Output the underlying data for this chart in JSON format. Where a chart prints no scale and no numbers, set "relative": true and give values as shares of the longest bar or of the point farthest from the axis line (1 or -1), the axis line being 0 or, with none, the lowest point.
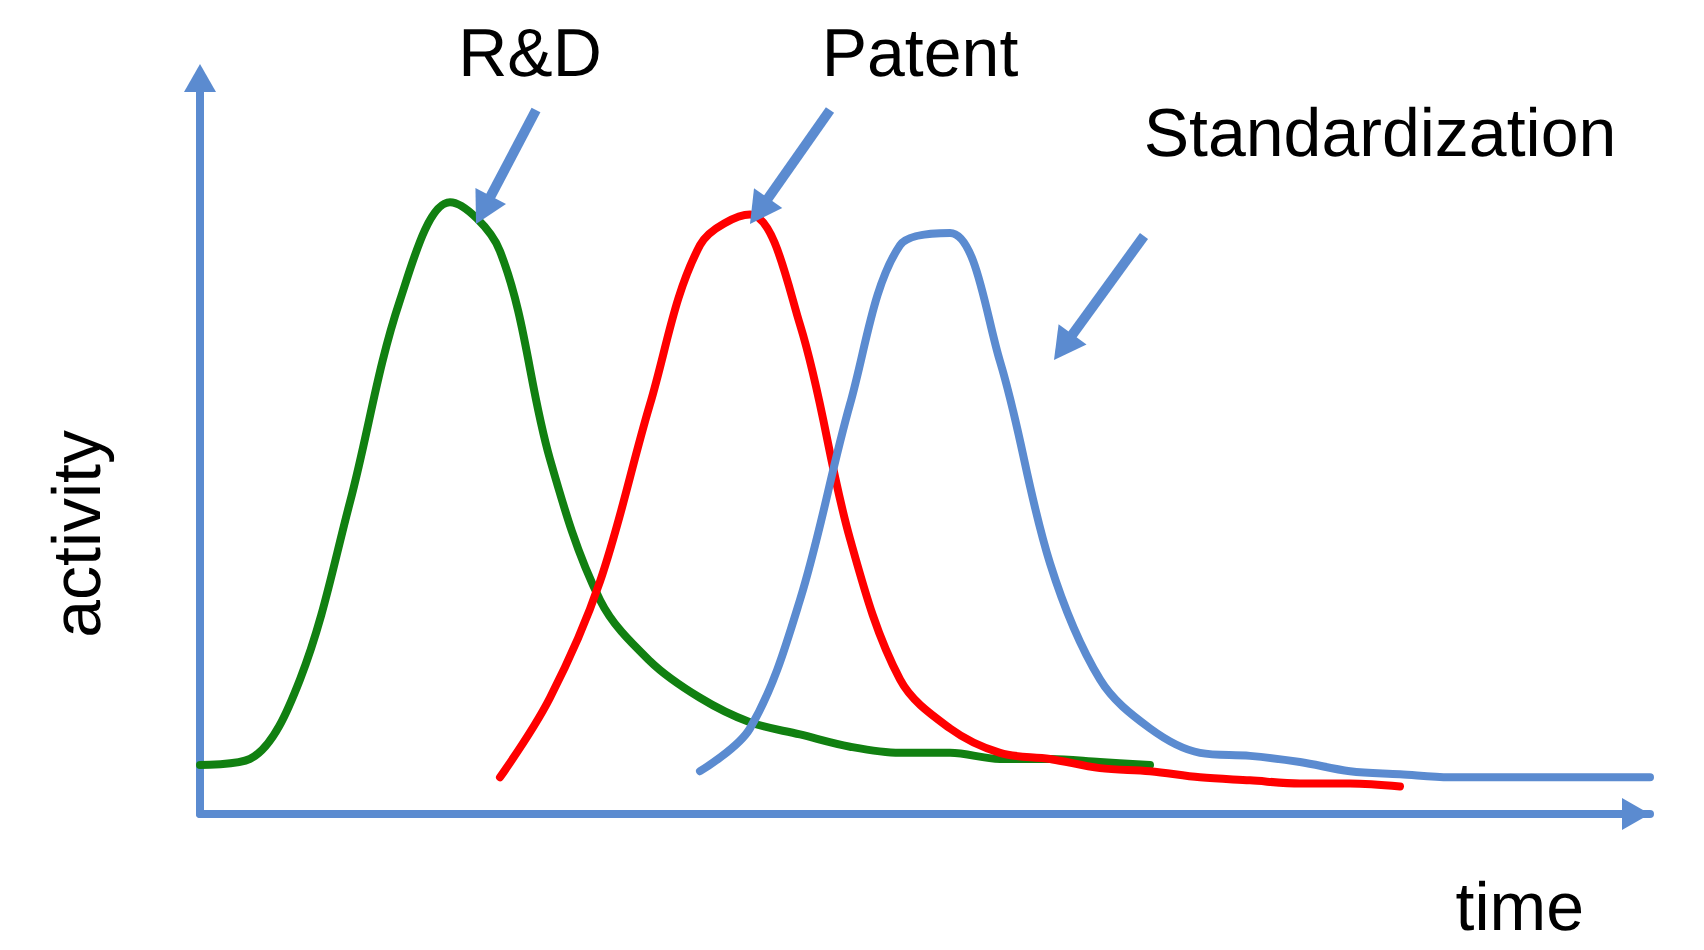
{
  "chart_data": {
    "type": "line",
    "relative": true,
    "xlabel": "time",
    "ylabel": "activity",
    "legend": false,
    "marker": "none",
    "grid": false,
    "categories": [
      null,
      null,
      null,
      null,
      null,
      null,
      null,
      null,
      null,
      null,
      null,
      null,
      null,
      null,
      null,
      null,
      null,
      null,
      null,
      null,
      null,
      null,
      null,
      null,
      null,
      null,
      null,
      null,
      null,
      null
    ],
    "series": [
      {
        "name": "R&D",
        "color": "#118011",
        "values": [
          0.08,
          0.09,
          0.22,
          0.51,
          0.84,
          1,
          0.92,
          0.58,
          0.35,
          0.25,
          0.19,
          0.15,
          0.13,
          0.11,
          0.1,
          0.1,
          0.09,
          0.09,
          0.085,
          0.08,
          null,
          null,
          null,
          null,
          null,
          null,
          null,
          null,
          null,
          null
        ]
      },
      {
        "name": "Patent",
        "color": "#ff0000",
        "values": [
          null,
          null,
          null,
          null,
          null,
          null,
          0.06,
          0.19,
          0.38,
          0.67,
          0.93,
          0.98,
          0.8,
          0.45,
          0.22,
          0.14,
          0.1,
          0.09,
          0.075,
          0.07,
          0.06,
          0.055,
          0.05,
          0.05,
          0.045,
          null,
          null,
          null,
          null,
          null
        ]
      },
      {
        "name": "Standardization",
        "color": "#5b8bd0",
        "values": [
          null,
          null,
          null,
          null,
          null,
          null,
          null,
          null,
          null,
          null,
          0.07,
          0.14,
          0.35,
          0.67,
          0.93,
          0.95,
          0.74,
          0.41,
          0.22,
          0.14,
          0.1,
          0.095,
          0.085,
          0.07,
          0.065,
          0.06,
          0.06,
          0.06,
          0.06,
          0.06
        ]
      }
    ]
  }
}
